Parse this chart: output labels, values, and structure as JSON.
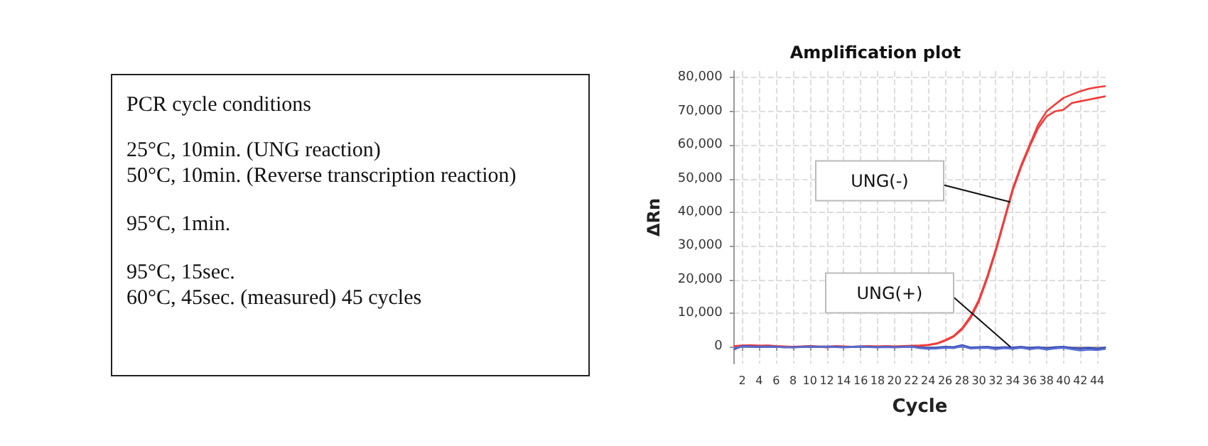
{
  "chart_data": [
    {
      "type": "other",
      "title": "PCR cycle conditions",
      "annotations": [
        "25°C, 10min. (UNG reaction)",
        "50°C, 10min. (Reverse transcription reaction)",
        "95°C, 1min.",
        "95°C, 15sec.",
        "60°C, 45sec. (measured)   45 cycles"
      ]
    },
    {
      "type": "line",
      "title": "Amplification plot",
      "xlabel": "Cycle",
      "ylabel": "ΔRn",
      "x": [
        1,
        2,
        3,
        4,
        5,
        6,
        7,
        8,
        9,
        10,
        11,
        12,
        13,
        14,
        15,
        16,
        17,
        18,
        19,
        20,
        21,
        22,
        23,
        24,
        25,
        26,
        27,
        28,
        29,
        30,
        31,
        32,
        33,
        34,
        35,
        36,
        37,
        38,
        39,
        40,
        41,
        42,
        43,
        44,
        45
      ],
      "series": [
        {
          "color": "#f03c3c",
          "values": [
            200,
            400,
            500,
            300,
            400,
            200,
            100,
            0,
            100,
            200,
            100,
            0,
            200,
            100,
            0,
            100,
            200,
            100,
            200,
            100,
            200,
            300,
            400,
            600,
            1000,
            2000,
            3200,
            5500,
            9000,
            14000,
            21000,
            29000,
            38000,
            47000,
            54000,
            60000,
            66000,
            70000,
            72000,
            74000,
            75000,
            76000,
            76700,
            77200,
            77500
          ]
        },
        {
          "color": "#f03c3c",
          "values": [
            100,
            300,
            400,
            200,
            300,
            100,
            0,
            -200,
            0,
            100,
            0,
            -200,
            100,
            0,
            -100,
            0,
            100,
            0,
            100,
            0,
            100,
            200,
            300,
            500,
            900,
            1800,
            3000,
            5200,
            8500,
            13500,
            20500,
            28500,
            37500,
            46500,
            53500,
            59500,
            65000,
            68500,
            70000,
            70500,
            72500,
            73000,
            73500,
            74000,
            74500
          ]
        },
        {
          "color": "#3a4db8",
          "values": [
            -800,
            200,
            100,
            0,
            100,
            0,
            -200,
            -100,
            0,
            100,
            0,
            100,
            0,
            -100,
            0,
            100,
            0,
            -100,
            0,
            -100,
            0,
            100,
            -200,
            -300,
            -200,
            0,
            -100,
            500,
            -200,
            -100,
            0,
            -300,
            -100,
            -200,
            0,
            -300,
            -100,
            -400,
            -100,
            0,
            -300,
            -500,
            -300,
            -600,
            -200
          ]
        },
        {
          "color": "#5a6fd0",
          "values": [
            -400,
            100,
            0,
            -100,
            0,
            -100,
            -100,
            -200,
            -100,
            0,
            -100,
            0,
            -100,
            -200,
            -100,
            0,
            -100,
            -200,
            -100,
            -200,
            -100,
            0,
            -400,
            -600,
            -500,
            -300,
            -400,
            200,
            -500,
            -400,
            -300,
            -700,
            -400,
            -600,
            -300,
            -700,
            -400,
            -800,
            -500,
            -300,
            -700,
            -1100,
            -800,
            -1000,
            -600
          ]
        }
      ],
      "xlim": [
        1,
        45
      ],
      "xticks": [
        2,
        4,
        6,
        8,
        10,
        12,
        14,
        16,
        18,
        20,
        22,
        24,
        26,
        28,
        30,
        32,
        34,
        36,
        38,
        40,
        42,
        44
      ],
      "ylim": [
        -5000,
        82000
      ],
      "yticks": [
        0,
        {
          "value": 10000,
          "label": "10,000"
        },
        {
          "value": 20000,
          "label": "20,000"
        },
        {
          "value": 30000,
          "label": "30,000"
        },
        {
          "value": 40000,
          "label": "40,000"
        },
        {
          "value": 50000,
          "label": "50,000"
        },
        {
          "value": 60000,
          "label": "60,000"
        },
        {
          "value": 70000,
          "label": "70,000"
        },
        {
          "value": 80000,
          "label": "80,000"
        }
      ],
      "grid": true,
      "marker": "none",
      "line_style": "solid",
      "annotations": [
        "UNG(-)",
        "UNG(+)"
      ]
    }
  ]
}
